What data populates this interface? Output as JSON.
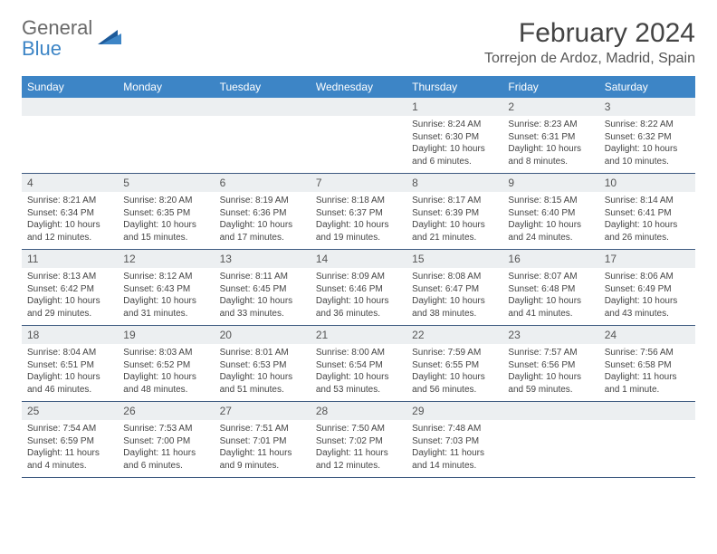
{
  "logo": {
    "general": "General",
    "blue": "Blue"
  },
  "title": "February 2024",
  "subtitle": "Torrejon de Ardoz, Madrid, Spain",
  "colors": {
    "header_bg": "#3d85c6",
    "header_text": "#ffffff",
    "daynum_bg": "#eceff1",
    "week_border": "#3d5a80",
    "logo_gray": "#6a6a6a",
    "logo_blue": "#3d85c6"
  },
  "weekdays": [
    "Sunday",
    "Monday",
    "Tuesday",
    "Wednesday",
    "Thursday",
    "Friday",
    "Saturday"
  ],
  "weeks": [
    [
      {
        "num": "",
        "lines": []
      },
      {
        "num": "",
        "lines": []
      },
      {
        "num": "",
        "lines": []
      },
      {
        "num": "",
        "lines": []
      },
      {
        "num": "1",
        "lines": [
          "Sunrise: 8:24 AM",
          "Sunset: 6:30 PM",
          "Daylight: 10 hours and 6 minutes."
        ]
      },
      {
        "num": "2",
        "lines": [
          "Sunrise: 8:23 AM",
          "Sunset: 6:31 PM",
          "Daylight: 10 hours and 8 minutes."
        ]
      },
      {
        "num": "3",
        "lines": [
          "Sunrise: 8:22 AM",
          "Sunset: 6:32 PM",
          "Daylight: 10 hours and 10 minutes."
        ]
      }
    ],
    [
      {
        "num": "4",
        "lines": [
          "Sunrise: 8:21 AM",
          "Sunset: 6:34 PM",
          "Daylight: 10 hours and 12 minutes."
        ]
      },
      {
        "num": "5",
        "lines": [
          "Sunrise: 8:20 AM",
          "Sunset: 6:35 PM",
          "Daylight: 10 hours and 15 minutes."
        ]
      },
      {
        "num": "6",
        "lines": [
          "Sunrise: 8:19 AM",
          "Sunset: 6:36 PM",
          "Daylight: 10 hours and 17 minutes."
        ]
      },
      {
        "num": "7",
        "lines": [
          "Sunrise: 8:18 AM",
          "Sunset: 6:37 PM",
          "Daylight: 10 hours and 19 minutes."
        ]
      },
      {
        "num": "8",
        "lines": [
          "Sunrise: 8:17 AM",
          "Sunset: 6:39 PM",
          "Daylight: 10 hours and 21 minutes."
        ]
      },
      {
        "num": "9",
        "lines": [
          "Sunrise: 8:15 AM",
          "Sunset: 6:40 PM",
          "Daylight: 10 hours and 24 minutes."
        ]
      },
      {
        "num": "10",
        "lines": [
          "Sunrise: 8:14 AM",
          "Sunset: 6:41 PM",
          "Daylight: 10 hours and 26 minutes."
        ]
      }
    ],
    [
      {
        "num": "11",
        "lines": [
          "Sunrise: 8:13 AM",
          "Sunset: 6:42 PM",
          "Daylight: 10 hours and 29 minutes."
        ]
      },
      {
        "num": "12",
        "lines": [
          "Sunrise: 8:12 AM",
          "Sunset: 6:43 PM",
          "Daylight: 10 hours and 31 minutes."
        ]
      },
      {
        "num": "13",
        "lines": [
          "Sunrise: 8:11 AM",
          "Sunset: 6:45 PM",
          "Daylight: 10 hours and 33 minutes."
        ]
      },
      {
        "num": "14",
        "lines": [
          "Sunrise: 8:09 AM",
          "Sunset: 6:46 PM",
          "Daylight: 10 hours and 36 minutes."
        ]
      },
      {
        "num": "15",
        "lines": [
          "Sunrise: 8:08 AM",
          "Sunset: 6:47 PM",
          "Daylight: 10 hours and 38 minutes."
        ]
      },
      {
        "num": "16",
        "lines": [
          "Sunrise: 8:07 AM",
          "Sunset: 6:48 PM",
          "Daylight: 10 hours and 41 minutes."
        ]
      },
      {
        "num": "17",
        "lines": [
          "Sunrise: 8:06 AM",
          "Sunset: 6:49 PM",
          "Daylight: 10 hours and 43 minutes."
        ]
      }
    ],
    [
      {
        "num": "18",
        "lines": [
          "Sunrise: 8:04 AM",
          "Sunset: 6:51 PM",
          "Daylight: 10 hours and 46 minutes."
        ]
      },
      {
        "num": "19",
        "lines": [
          "Sunrise: 8:03 AM",
          "Sunset: 6:52 PM",
          "Daylight: 10 hours and 48 minutes."
        ]
      },
      {
        "num": "20",
        "lines": [
          "Sunrise: 8:01 AM",
          "Sunset: 6:53 PM",
          "Daylight: 10 hours and 51 minutes."
        ]
      },
      {
        "num": "21",
        "lines": [
          "Sunrise: 8:00 AM",
          "Sunset: 6:54 PM",
          "Daylight: 10 hours and 53 minutes."
        ]
      },
      {
        "num": "22",
        "lines": [
          "Sunrise: 7:59 AM",
          "Sunset: 6:55 PM",
          "Daylight: 10 hours and 56 minutes."
        ]
      },
      {
        "num": "23",
        "lines": [
          "Sunrise: 7:57 AM",
          "Sunset: 6:56 PM",
          "Daylight: 10 hours and 59 minutes."
        ]
      },
      {
        "num": "24",
        "lines": [
          "Sunrise: 7:56 AM",
          "Sunset: 6:58 PM",
          "Daylight: 11 hours and 1 minute."
        ]
      }
    ],
    [
      {
        "num": "25",
        "lines": [
          "Sunrise: 7:54 AM",
          "Sunset: 6:59 PM",
          "Daylight: 11 hours and 4 minutes."
        ]
      },
      {
        "num": "26",
        "lines": [
          "Sunrise: 7:53 AM",
          "Sunset: 7:00 PM",
          "Daylight: 11 hours and 6 minutes."
        ]
      },
      {
        "num": "27",
        "lines": [
          "Sunrise: 7:51 AM",
          "Sunset: 7:01 PM",
          "Daylight: 11 hours and 9 minutes."
        ]
      },
      {
        "num": "28",
        "lines": [
          "Sunrise: 7:50 AM",
          "Sunset: 7:02 PM",
          "Daylight: 11 hours and 12 minutes."
        ]
      },
      {
        "num": "29",
        "lines": [
          "Sunrise: 7:48 AM",
          "Sunset: 7:03 PM",
          "Daylight: 11 hours and 14 minutes."
        ]
      },
      {
        "num": "",
        "lines": []
      },
      {
        "num": "",
        "lines": []
      }
    ]
  ]
}
